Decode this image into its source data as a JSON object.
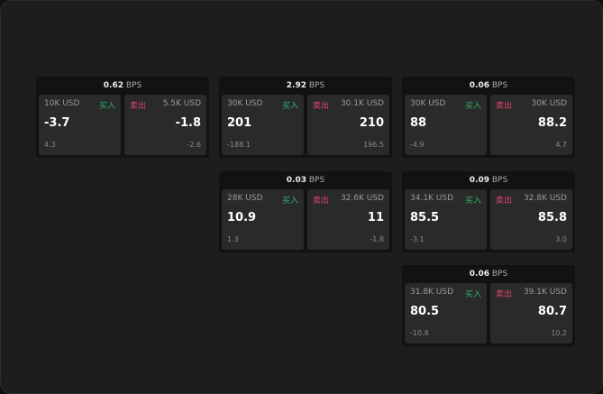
{
  "cards": [
    {
      "bps": "0.62",
      "unit": "BPS",
      "buy": {
        "size": "10K USD",
        "label": "买入",
        "price": "-3.7",
        "change": "4.3"
      },
      "sell": {
        "size": "5.5K USD",
        "label": "卖出",
        "price": "-1.8",
        "change": "-2.6"
      }
    },
    {
      "bps": "2.92",
      "unit": "BPS",
      "buy": {
        "size": "30K USD",
        "label": "买入",
        "price": "201",
        "change": "-188.1"
      },
      "sell": {
        "size": "30.1K USD",
        "label": "卖出",
        "price": "210",
        "change": "196.5"
      }
    },
    {
      "bps": "0.06",
      "unit": "BPS",
      "buy": {
        "size": "30K USD",
        "label": "买入",
        "price": "88",
        "change": "-4.9"
      },
      "sell": {
        "size": "30K USD",
        "label": "卖出",
        "price": "88.2",
        "change": "4.7"
      }
    },
    {
      "bps": "0.03",
      "unit": "BPS",
      "buy": {
        "size": "28K USD",
        "label": "买入",
        "price": "10.9",
        "change": "1.3"
      },
      "sell": {
        "size": "32.6K USD",
        "label": "卖出",
        "price": "11",
        "change": "-1.8"
      }
    },
    {
      "bps": "0.09",
      "unit": "BPS",
      "buy": {
        "size": "34.1K USD",
        "label": "买入",
        "price": "85.5",
        "change": "-3.1"
      },
      "sell": {
        "size": "32.8K USD",
        "label": "卖出",
        "price": "85.8",
        "change": "3.0"
      }
    },
    {
      "bps": "0.06",
      "unit": "BPS",
      "buy": {
        "size": "31.8K USD",
        "label": "买入",
        "price": "80.5",
        "change": "-10.8"
      },
      "sell": {
        "size": "39.1K USD",
        "label": "卖出",
        "price": "80.7",
        "change": "10.2"
      }
    }
  ],
  "colors": {
    "buy": "#2fb36a",
    "sell": "#e0456c"
  }
}
